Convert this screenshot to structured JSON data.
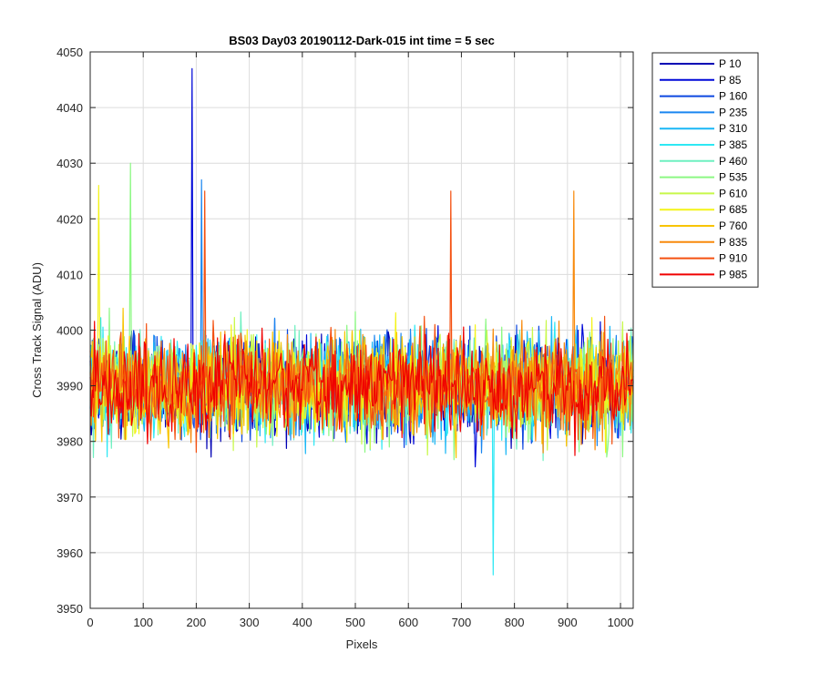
{
  "chart_data": {
    "type": "line",
    "title": "BS03 Day03 20190112-Dark-015 int time = 5 sec",
    "xlabel": "Pixels",
    "ylabel": "Cross Track Signal (ADU)",
    "xlim": [
      0,
      1024
    ],
    "ylim": [
      3950,
      4050
    ],
    "xticks": [
      0,
      100,
      200,
      300,
      400,
      500,
      600,
      700,
      800,
      900,
      1000
    ],
    "yticks": [
      3950,
      3960,
      3970,
      3980,
      3990,
      4000,
      4010,
      4020,
      4030,
      4040,
      4050
    ],
    "grid": true,
    "legend_position": "outside-top-right",
    "noise_center": 3990,
    "series": [
      {
        "name": "P 10",
        "color": "#0000b4"
      },
      {
        "name": "P 85",
        "color": "#0008d8"
      },
      {
        "name": "P 160",
        "color": "#0d48e0"
      },
      {
        "name": "P 235",
        "color": "#1a86f0"
      },
      {
        "name": "P 310",
        "color": "#1ab7f6"
      },
      {
        "name": "P 385",
        "color": "#2ee8f4"
      },
      {
        "name": "P 460",
        "color": "#6ef0c0"
      },
      {
        "name": "P 535",
        "color": "#8cf883"
      },
      {
        "name": "P 610",
        "color": "#c8f84a"
      },
      {
        "name": "P 685",
        "color": "#f4f418"
      },
      {
        "name": "P 760",
        "color": "#f8c400"
      },
      {
        "name": "P 835",
        "color": "#f88a0c"
      },
      {
        "name": "P 910",
        "color": "#f45010"
      },
      {
        "name": "P 985",
        "color": "#f00000"
      }
    ],
    "notable_peaks": [
      {
        "series": "P 85",
        "x": 192,
        "y": 4047
      },
      {
        "series": "P 235",
        "x": 210,
        "y": 4027
      },
      {
        "series": "P 535",
        "x": 76,
        "y": 4030
      },
      {
        "series": "P 685",
        "x": 16,
        "y": 4026
      },
      {
        "series": "P 910",
        "x": 215,
        "y": 4025
      },
      {
        "series": "P 910",
        "x": 680,
        "y": 4025
      },
      {
        "series": "P 835",
        "x": 912,
        "y": 4025
      },
      {
        "series": "P 385",
        "x": 760,
        "y": 3956
      }
    ]
  }
}
